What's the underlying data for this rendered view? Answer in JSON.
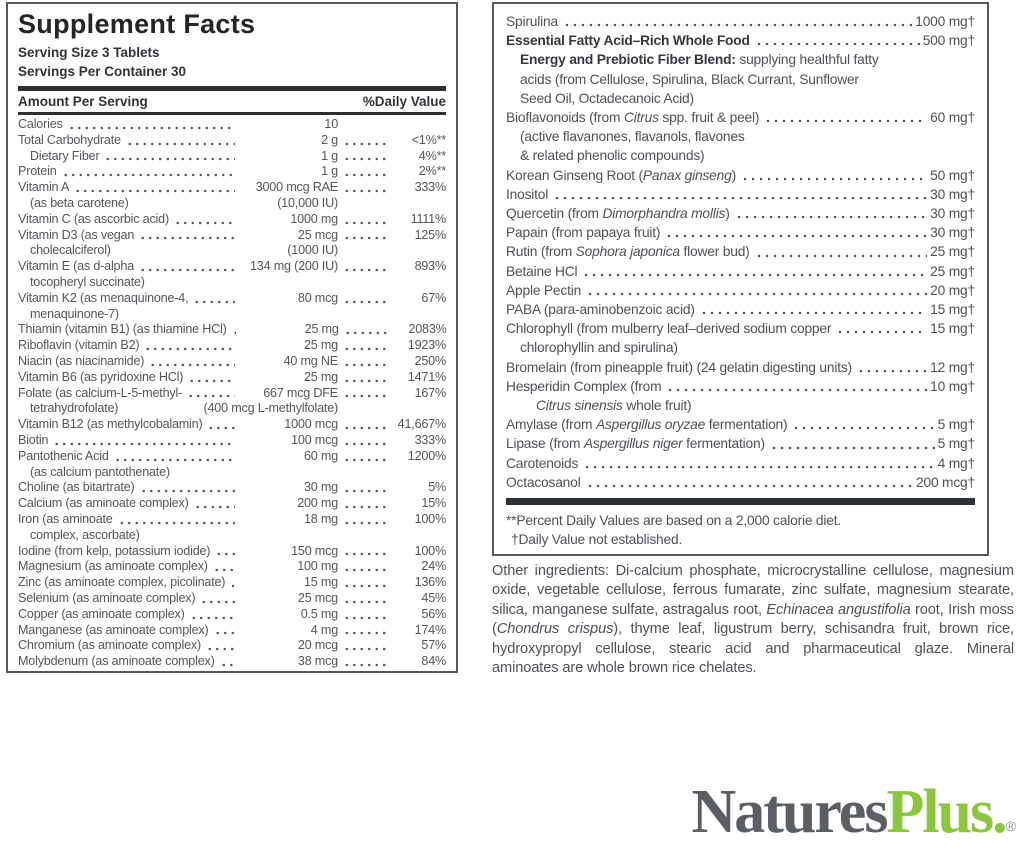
{
  "panel_left": {
    "title": "Supplement Facts",
    "serving_size": "Serving Size 3 Tablets",
    "servings_per_container": "Servings Per Container 30",
    "col_amount": "Amount Per Serving",
    "col_dv": "%Daily Value",
    "rows": [
      {
        "l": "Calories",
        "a": "10",
        "d": ""
      },
      {
        "l": "Total Carbohydrate",
        "a": "2 g",
        "d": "<1%**"
      },
      {
        "l": "Dietary Fiber",
        "a": "1 g",
        "d": "4%**",
        "ind": 1
      },
      {
        "l": "Protein",
        "a": "1 g",
        "d": "2%**"
      },
      {
        "l": "Vitamin A",
        "a": "3000 mcg RAE",
        "d": "333%"
      },
      {
        "l": "(as beta carotene)",
        "a": "(10,000 IU)",
        "cont": true,
        "ind": 1
      },
      {
        "l": "Vitamin C (as ascorbic acid)",
        "a": "1000 mg",
        "d": "1111%"
      },
      {
        "l": "Vitamin D3 (as vegan",
        "a": "25 mcg",
        "d": "125%"
      },
      {
        "l": "cholecalciferol)",
        "a": "(1000 IU)",
        "cont": true,
        "ind": 1
      },
      {
        "l": "Vitamin E (as d-alpha",
        "a": "134 mg (200 IU)",
        "d": "893%"
      },
      {
        "l": "tocopheryl succinate)",
        "a": "",
        "cont": true,
        "ind": 1
      },
      {
        "l": "Vitamin K2 (as menaquinone-4,",
        "a": "80 mcg",
        "d": "67%"
      },
      {
        "l": "menaquinone-7)",
        "a": "",
        "cont": true,
        "ind": 1
      },
      {
        "l": "Thiamin (vitamin B1) (as thiamine HCl)",
        "a": "25 mg",
        "d": "2083%"
      },
      {
        "l": "Riboflavin (vitamin B2)",
        "a": "25 mg",
        "d": "1923%"
      },
      {
        "l": "Niacin (as niacinamide)",
        "a": "40 mg NE",
        "d": "250%"
      },
      {
        "l": "Vitamin B6 (as pyridoxine HCl)",
        "a": "25 mg",
        "d": "1471%"
      },
      {
        "l": "Folate (as calcium-L-5-methyl-",
        "a": "667 mcg DFE",
        "d": "167%"
      },
      {
        "l": "tetrahydrofolate)",
        "a": "(400 mcg L-methylfolate)",
        "cont": true,
        "ind": 1
      },
      {
        "l": "Vitamin B12 (as methylcobalamin)",
        "a": "1000 mcg",
        "d": "41,667%"
      },
      {
        "l": "Biotin",
        "a": "100 mcg",
        "d": "333%"
      },
      {
        "l": "Pantothenic Acid",
        "a": "60 mg",
        "d": "1200%"
      },
      {
        "l": "(as calcium pantothenate)",
        "a": "",
        "cont": true,
        "ind": 1
      },
      {
        "l": "Choline (as bitartrate)",
        "a": "30 mg",
        "d": "5%"
      },
      {
        "l": "Calcium (as aminoate complex)",
        "a": "200 mg",
        "d": "15%"
      },
      {
        "l": "Iron (as aminoate",
        "a": "18 mg",
        "d": "100%"
      },
      {
        "l": "complex, ascorbate)",
        "a": "",
        "cont": true,
        "ind": 1
      },
      {
        "l": "Iodine (from kelp, potassium iodide)",
        "a": "150 mcg",
        "d": "100%"
      },
      {
        "l": "Magnesium (as aminoate complex)",
        "a": "100 mg",
        "d": "24%"
      },
      {
        "l": "Zinc (as aminoate complex, picolinate)",
        "a": "15 mg",
        "d": "136%"
      },
      {
        "l": "Selenium (as aminoate complex)",
        "a": "25 mcg",
        "d": "45%"
      },
      {
        "l": "Copper (as aminoate complex)",
        "a": "0.5 mg",
        "d": "56%"
      },
      {
        "l": "Manganese (as aminoate complex)",
        "a": "4 mg",
        "d": "174%"
      },
      {
        "l": "Chromium (as aminoate complex)",
        "a": "20 mcg",
        "d": "57%"
      },
      {
        "l": "Molybdenum (as aminoate complex)",
        "a": "38 mcg",
        "d": "84%"
      }
    ]
  },
  "panel_right": {
    "rows": [
      {
        "l": [
          [
            "Spirulina"
          ]
        ],
        "a": "1000 mg†"
      },
      {
        "l": [
          [
            "Essential Fatty Acid–Rich Whole Food",
            "b"
          ]
        ],
        "a": "500 mg†"
      },
      {
        "l": [
          [
            "Energy and Prebiotic Fiber Blend:",
            "b"
          ],
          [
            " supplying healthful fatty"
          ]
        ],
        "cont": true,
        "ind": 1
      },
      {
        "l": [
          [
            "acids (from Cellulose, Spirulina, Black Currant, Sunflower"
          ]
        ],
        "cont": true,
        "ind": 1
      },
      {
        "l": [
          [
            "Seed Oil, Octadecanoic Acid)"
          ]
        ],
        "cont": true,
        "ind": 1
      },
      {
        "l": [
          [
            "Bioflavonoids (from "
          ],
          [
            "Citrus",
            "i"
          ],
          [
            " spp. fruit & peel)"
          ]
        ],
        "a": "60 mg†"
      },
      {
        "l": [
          [
            "(active flavanones, flavanols, flavones"
          ]
        ],
        "cont": true,
        "ind": 1
      },
      {
        "l": [
          [
            "& related phenolic compounds)"
          ]
        ],
        "cont": true,
        "ind": 1
      },
      {
        "l": [
          [
            "Korean Ginseng Root ("
          ],
          [
            "Panax ginseng",
            "i"
          ],
          [
            ")"
          ]
        ],
        "a": "50 mg†"
      },
      {
        "l": [
          [
            "Inositol"
          ]
        ],
        "a": "30 mg†"
      },
      {
        "l": [
          [
            "Quercetin (from "
          ],
          [
            "Dimorphandra mollis",
            "i"
          ],
          [
            ")"
          ]
        ],
        "a": "30 mg†"
      },
      {
        "l": [
          [
            "Papain (from papaya fruit)"
          ]
        ],
        "a": "30 mg†"
      },
      {
        "l": [
          [
            "Rutin (from "
          ],
          [
            "Sophora japonica",
            "i"
          ],
          [
            " flower bud)"
          ]
        ],
        "a": "25 mg†"
      },
      {
        "l": [
          [
            "Betaine HCl"
          ]
        ],
        "a": "25 mg†"
      },
      {
        "l": [
          [
            "Apple Pectin"
          ]
        ],
        "a": "20 mg†"
      },
      {
        "l": [
          [
            "PABA (para-aminobenzoic acid)"
          ]
        ],
        "a": "15 mg†"
      },
      {
        "l": [
          [
            "Chlorophyll (from mulberry leaf–derived sodium copper"
          ]
        ],
        "a": "15 mg†"
      },
      {
        "l": [
          [
            "chlorophyllin and spirulina)"
          ]
        ],
        "cont": true,
        "ind": 1
      },
      {
        "l": [
          [
            "Bromelain (from pineapple fruit) (24 gelatin digesting units)"
          ]
        ],
        "a": "12 mg†"
      },
      {
        "l": [
          [
            "Hesperidin Complex (from"
          ]
        ],
        "a": "10 mg†"
      },
      {
        "l": [
          [
            "Citrus sinensis",
            "i"
          ],
          [
            " whole fruit)"
          ]
        ],
        "cont": true,
        "ind": 2
      },
      {
        "l": [
          [
            "Amylase (from "
          ],
          [
            "Aspergillus oryzae",
            "i"
          ],
          [
            " fermentation)"
          ]
        ],
        "a": "5 mg†"
      },
      {
        "l": [
          [
            "Lipase (from "
          ],
          [
            "Aspergillus niger",
            "i"
          ],
          [
            " fermentation)"
          ]
        ],
        "a": "5 mg†"
      },
      {
        "l": [
          [
            "Carotenoids"
          ]
        ],
        "a": "4 mg†"
      },
      {
        "l": [
          [
            "Octacosanol"
          ]
        ],
        "a": "200 mcg†"
      }
    ],
    "footnote_dv": "**Percent Daily Values are based on a 2,000 calorie diet.",
    "footnote_dagger": "†Daily Value not established."
  },
  "other_ingredients_segments": [
    [
      "Other ingredients: Di-calcium phosphate, microcrystalline cellulose, magnesium oxide, vegetable cellulose, ferrous fumarate, zinc sulfate, magnesium stearate, silica, manganese sulfate, astragalus root, "
    ],
    [
      "Echinacea angustifolia",
      "i"
    ],
    [
      " root, Irish moss ("
    ],
    [
      "Chondrus crispus",
      "i"
    ],
    [
      "), thyme leaf, ligustrum berry, schisandra fruit, brown rice, hydroxypropyl cellulose, stearic acid and pharmaceutical glaze. Mineral aminoates are whole brown rice chelates."
    ]
  ],
  "logo": {
    "part1": "Natures",
    "part2": "Plus.",
    "registered": "®"
  },
  "colors": {
    "body_text": "#53565c",
    "dark_text": "#2c2f34",
    "rule_bar": "#2c2f34",
    "logo_gray": "#5b5e63",
    "logo_green": "#8cc63f"
  }
}
